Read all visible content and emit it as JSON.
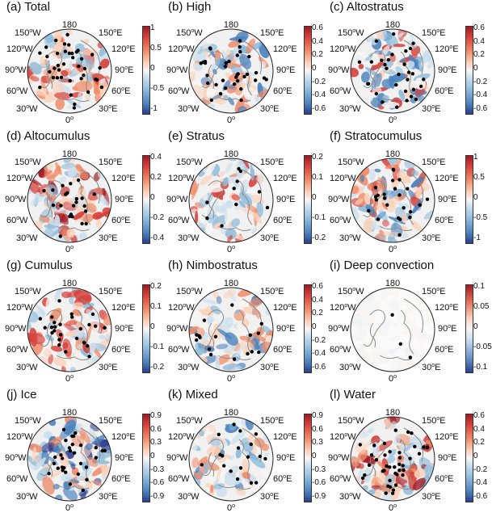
{
  "figure": {
    "panels": [
      {
        "title": "(a) Total",
        "ticks": [
          "1",
          "0.5",
          "0",
          "-0.5",
          "-1"
        ],
        "dots": "a"
      },
      {
        "title": "(b) High",
        "ticks": [
          "0.6",
          "0.4",
          "0.2",
          "0",
          "-0.2",
          "-0.4",
          "-0.6"
        ],
        "dots": "b"
      },
      {
        "title": "(c) Altostratus",
        "ticks": [
          "0.6",
          "0.4",
          "0.2",
          "0",
          "-0.2",
          "-0.4",
          "-0.6"
        ],
        "dots": "c"
      },
      {
        "title": "(d) Altocumulus",
        "ticks": [
          "0.4",
          "0.2",
          "0",
          "-0.2",
          "-0.4"
        ],
        "dots": "d"
      },
      {
        "title": "(e) Stratus",
        "ticks": [
          "0.2",
          "0.1",
          "0",
          "-0.1",
          "-0.2"
        ],
        "dots": "e"
      },
      {
        "title": "(f) Stratocumulus",
        "ticks": [
          "1",
          "0.5",
          "0",
          "-0.5",
          "-1"
        ],
        "dots": "f"
      },
      {
        "title": "(g) Cumulus",
        "ticks": [
          "0.2",
          "0.1",
          "0",
          "-0.1",
          "-0.2"
        ],
        "dots": "g"
      },
      {
        "title": "(h) Nimbostratus",
        "ticks": [
          "0.6",
          "0.4",
          "0.2",
          "0",
          "-0.2",
          "-0.4",
          "-0.6"
        ],
        "dots": "h"
      },
      {
        "title": "(i) Deep convection",
        "ticks": [
          "0.1",
          "0.05",
          "0",
          "-0.05",
          "-0.1"
        ],
        "dots": "i"
      },
      {
        "title": "(j) Ice",
        "ticks": [
          "0.9",
          "0.6",
          "0.3",
          "0",
          "-0.3",
          "-0.6",
          "-0.9"
        ],
        "dots": "j"
      },
      {
        "title": "(k) Mixed",
        "ticks": [
          "0.9",
          "0.6",
          "0.3",
          "0",
          "-0.3",
          "-0.6",
          "-0.9"
        ],
        "dots": "k"
      },
      {
        "title": "(l) Water",
        "ticks": [
          "0.6",
          "0.4",
          "0.2",
          "0",
          "-0.2",
          "-0.4",
          "-0.6"
        ],
        "dots": "l"
      }
    ],
    "longitude_labels": {
      "top": "180",
      "top_right": "150",
      "top_right_dir": "E",
      "upper_right": "120",
      "upper_right_dir": "E",
      "right": "90",
      "right_dir": "E",
      "lower_right": "60",
      "lower_right_dir": "E",
      "bottom_right": "30",
      "bottom_right_dir": "E",
      "bottom": "0",
      "bottom_left": "30",
      "bottom_left_dir": "W",
      "lower_left": "60",
      "lower_left_dir": "W",
      "left": "90",
      "left_dir": "W",
      "upper_left": "120",
      "upper_left_dir": "W",
      "top_left": "150",
      "top_left_dir": "W",
      "degree": "o"
    },
    "colormap": {
      "high": "#a11b24",
      "mid": "#f7f5f3",
      "low": "#2c3f8f",
      "coast": "#8a8a8a",
      "dot": "#000000"
    }
  }
}
